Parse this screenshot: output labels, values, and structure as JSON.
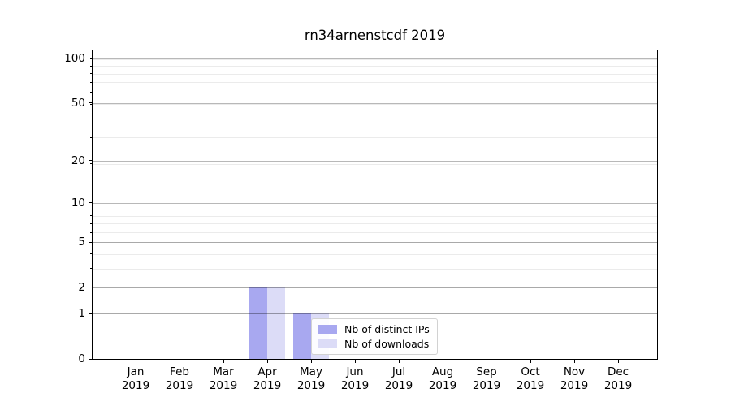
{
  "chart_data": {
    "type": "bar",
    "title": "rn34arnenstcdf 2019",
    "categories": [
      "Jan",
      "Feb",
      "Mar",
      "Apr",
      "May",
      "Jun",
      "Jul",
      "Aug",
      "Sep",
      "Oct",
      "Nov",
      "Dec"
    ],
    "year_label": "2019",
    "series": [
      {
        "name": "Nb of distinct IPs",
        "color": "#a8a8f0",
        "values": [
          0,
          0,
          0,
          2,
          1,
          0,
          0,
          0,
          0,
          0,
          0,
          0
        ]
      },
      {
        "name": "Nb of downloads",
        "color": "#dcdcf7",
        "values": [
          0,
          0,
          0,
          2,
          1,
          0,
          0,
          0,
          0,
          0,
          0,
          0
        ]
      }
    ],
    "yscale": "log1p",
    "yticks": [
      0,
      1,
      2,
      5,
      10,
      20,
      50,
      100
    ],
    "minor_yticks": [
      1,
      2,
      3,
      4,
      5,
      6,
      7,
      8,
      9,
      19,
      29,
      39,
      49,
      59,
      69,
      79,
      89,
      99
    ],
    "ylim": [
      0,
      113.3
    ],
    "xlabel": "",
    "ylabel": "",
    "grid": {
      "orientation": "horizontal",
      "major_color": "#b8b8b8",
      "minor_color": "#e8e8e8",
      "drawn_over_bars": true
    },
    "legend": {
      "location": "inside-lower-middle",
      "border_color": "#d2d2d2",
      "background": "#ffffff"
    },
    "axis": {
      "spine_color": "#000000",
      "tick_color": "#000000",
      "label_color": "#000000"
    },
    "background": "#ffffff"
  }
}
